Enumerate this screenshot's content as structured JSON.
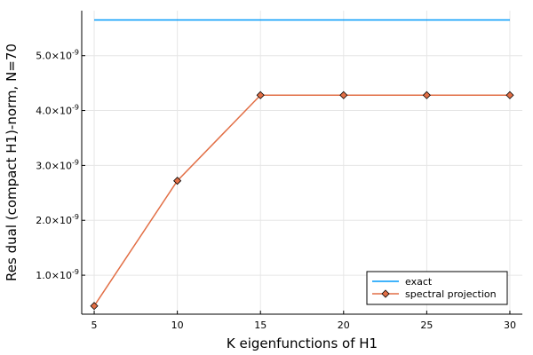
{
  "chart_data": {
    "type": "line",
    "xlabel": "K eigenfunctions of H1",
    "ylabel": "Res dual (compact H1)-norm, N=70",
    "x": [
      5,
      10,
      15,
      20,
      25,
      30
    ],
    "xticks": [
      "5",
      "10",
      "15",
      "20",
      "25",
      "30"
    ],
    "yticks": [
      {
        "value": 1e-09,
        "mantissa": "1.0",
        "exponent": "-9"
      },
      {
        "value": 2e-09,
        "mantissa": "2.0",
        "exponent": "-9"
      },
      {
        "value": 3e-09,
        "mantissa": "3.0",
        "exponent": "-9"
      },
      {
        "value": 4e-09,
        "mantissa": "4.0",
        "exponent": "-9"
      },
      {
        "value": 5e-09,
        "mantissa": "5.0",
        "exponent": "-9"
      }
    ],
    "xlim": [
      4.25,
      30.75
    ],
    "ylim": [
      2.9e-10,
      5.82e-09
    ],
    "grid": true,
    "legend_position": "bottom-right",
    "series": [
      {
        "name": "exact",
        "color": "#009AFA",
        "marker": "none",
        "values": [
          5.65e-09,
          5.65e-09,
          5.65e-09,
          5.65e-09,
          5.65e-09,
          5.65e-09
        ]
      },
      {
        "name": "spectral projection",
        "color": "#E26F46",
        "marker": "diamond",
        "values": [
          4.4e-10,
          2.72e-09,
          4.28e-09,
          4.28e-09,
          4.28e-09,
          4.28e-09
        ]
      }
    ]
  }
}
